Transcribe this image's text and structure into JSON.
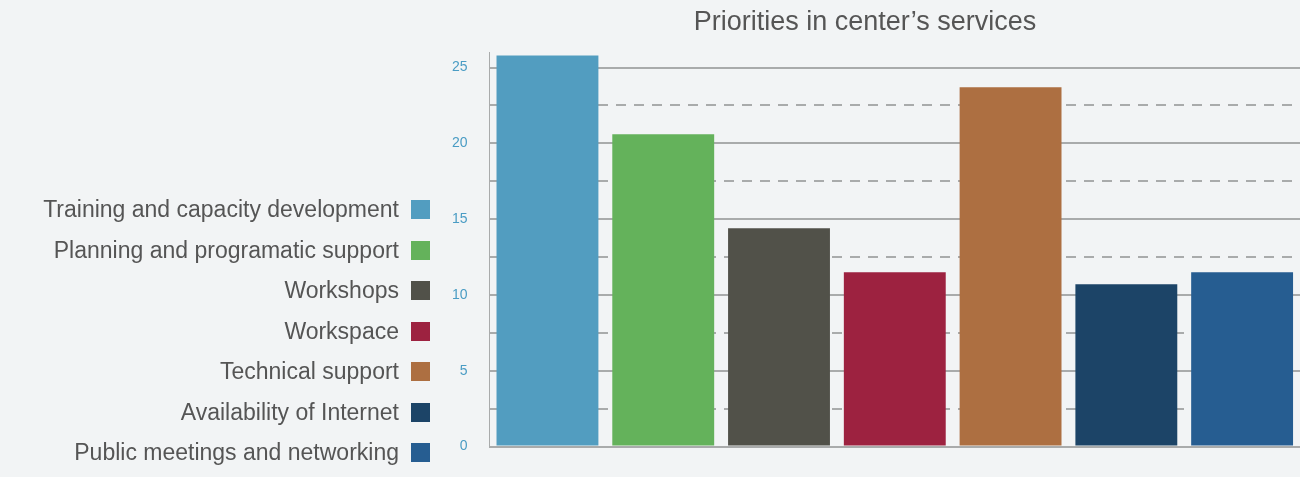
{
  "chart_data": {
    "type": "bar",
    "title": "Priorities in center’s services",
    "categories": [
      null,
      null,
      null,
      null,
      null,
      null,
      null
    ],
    "series": [
      {
        "name": "Training and capacity development",
        "color": "#529dc0",
        "values": [
          25.8,
          null,
          null,
          null,
          null,
          null,
          null
        ]
      },
      {
        "name": "Planning and programatic support",
        "color": "#64b25b",
        "values": [
          null,
          20.6,
          null,
          null,
          null,
          null,
          null
        ]
      },
      {
        "name": "Workshops",
        "color": "#515149",
        "values": [
          null,
          null,
          14.4,
          null,
          null,
          null,
          null
        ]
      },
      {
        "name": "Workspace",
        "color": "#9d2240",
        "values": [
          null,
          null,
          null,
          11.5,
          null,
          null,
          null
        ]
      },
      {
        "name": "Technical support",
        "color": "#ad6f41",
        "values": [
          null,
          null,
          null,
          null,
          23.7,
          null,
          null
        ]
      },
      {
        "name": "Availability of Internet",
        "color": "#1c4467",
        "values": [
          null,
          null,
          null,
          null,
          null,
          10.7,
          null
        ]
      },
      {
        "name": "Public meetings and networking",
        "color": "#265d91",
        "values": [
          null,
          null,
          null,
          null,
          null,
          null,
          11.5
        ]
      }
    ],
    "ylim": [
      0,
      26
    ],
    "yticks": [
      0,
      {
        "value": 2.5,
        "label": null
      },
      5,
      {
        "value": 7.5,
        "label": null
      },
      10,
      {
        "value": 12.5,
        "label": null
      },
      15,
      {
        "value": 17.5,
        "label": null
      },
      20,
      {
        "value": 22.5,
        "label": null
      },
      25
    ],
    "grid": "y",
    "legend": "left"
  }
}
